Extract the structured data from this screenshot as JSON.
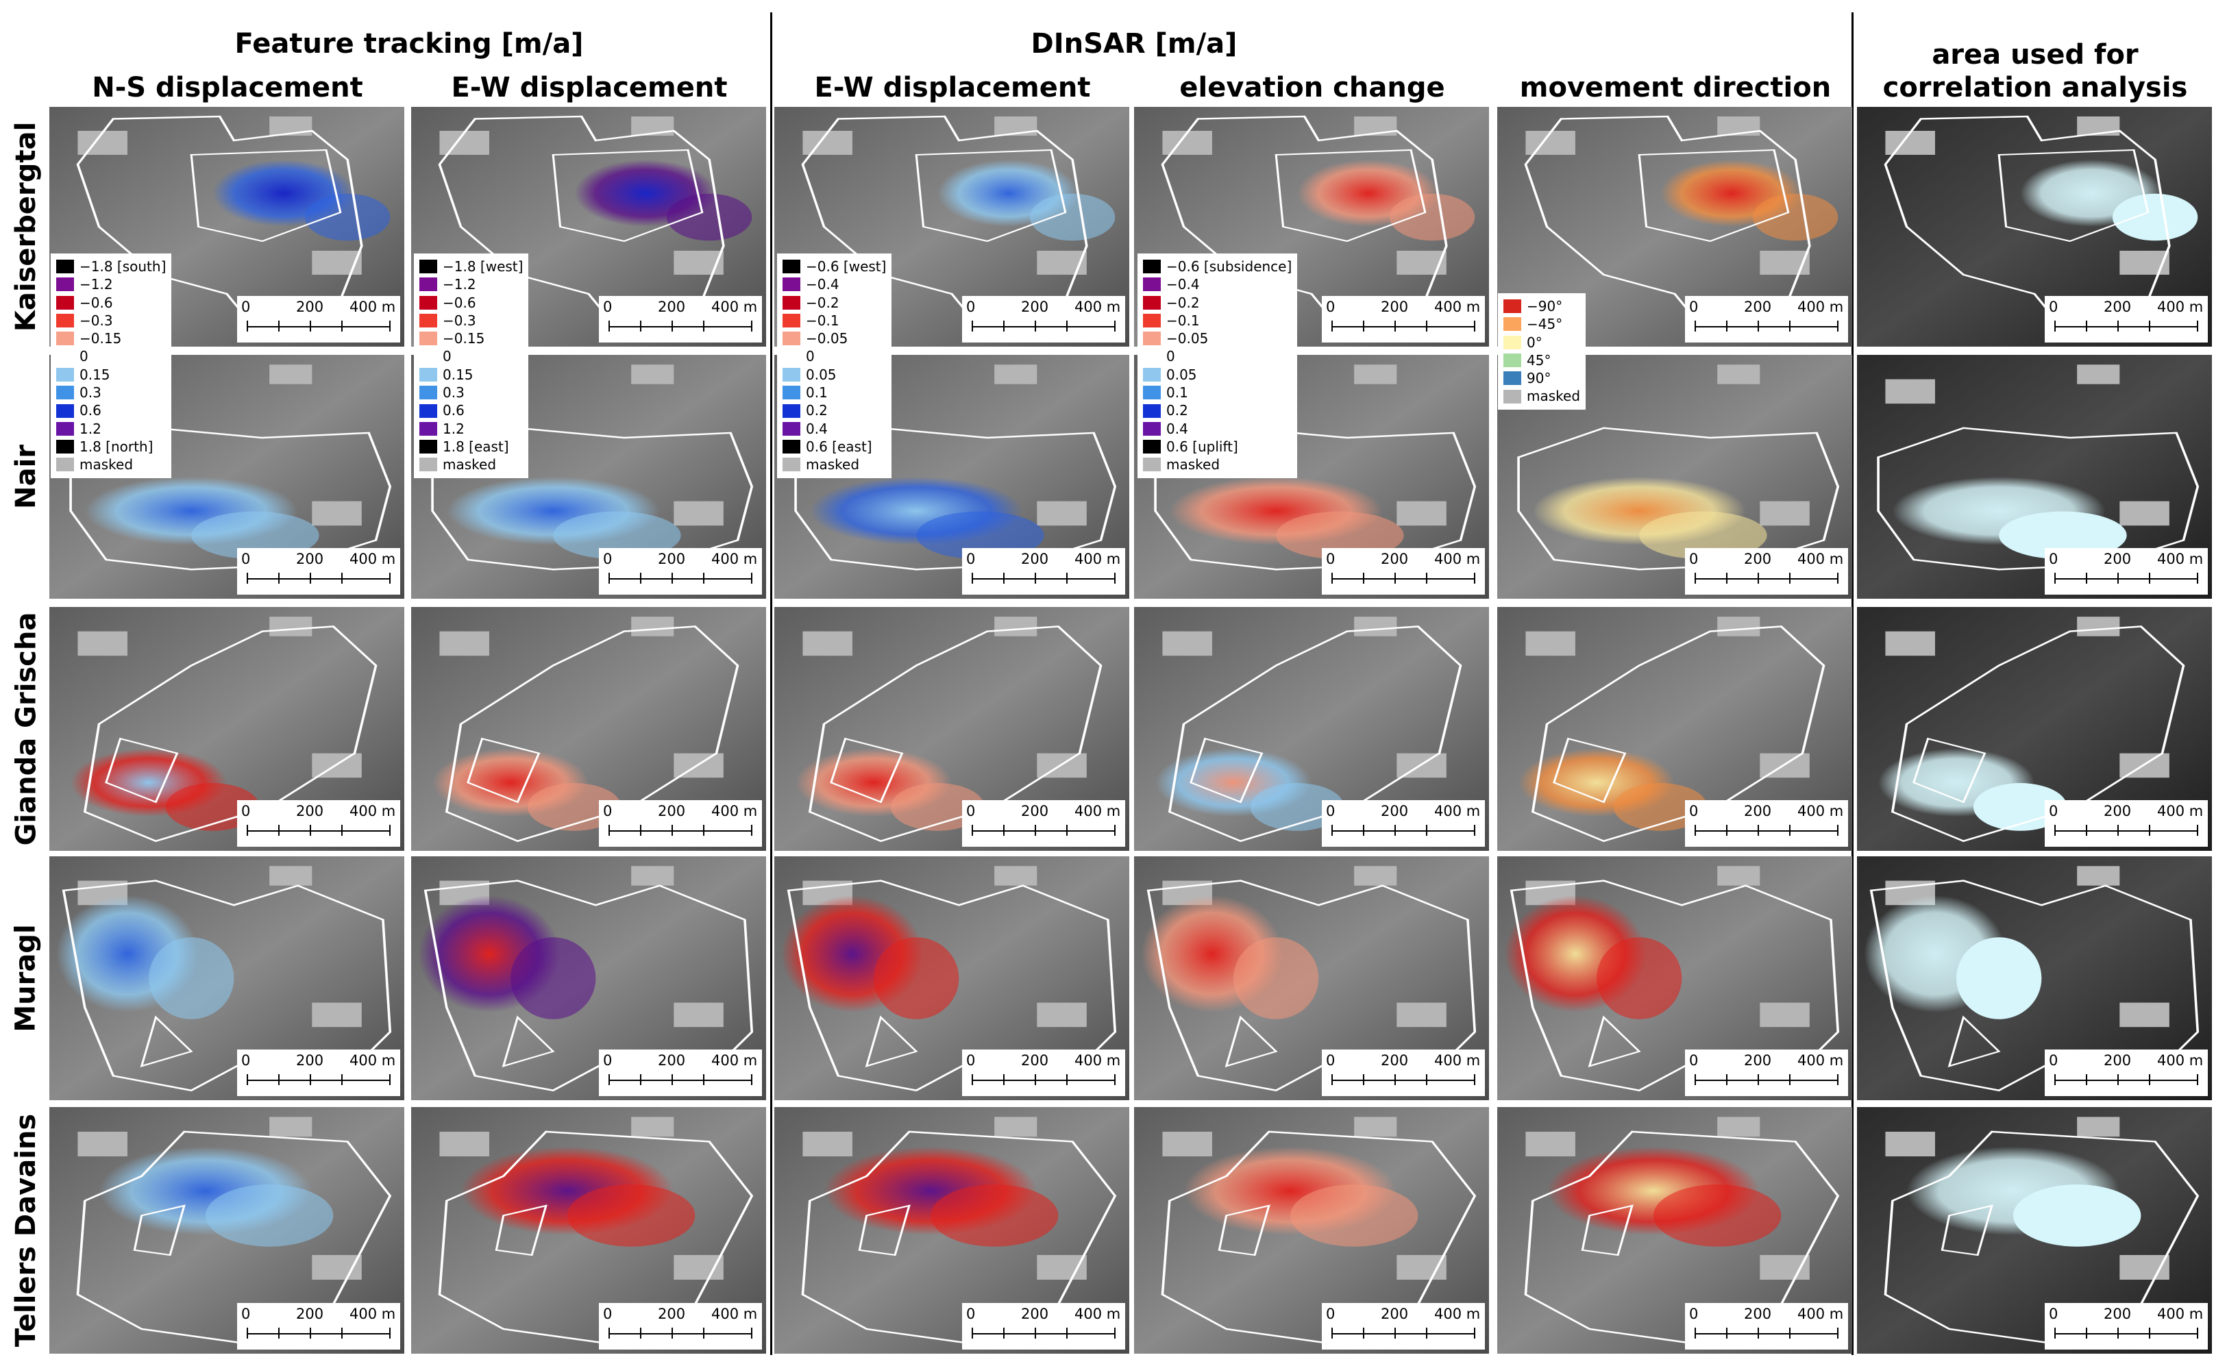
{
  "headers": {
    "feature_tracking": "Feature tracking [m/a]",
    "dinsar": "DInSAR [m/a]",
    "columns": [
      "N-S displacement",
      "E-W displacement",
      "E-W displacement",
      "elevation change",
      "movement direction",
      "area used for"
    ],
    "column6_line2": "correlation analysis"
  },
  "rows": [
    "Kaiserbergtal",
    "Nair",
    "Gianda Grischa",
    "Muragl",
    "Tellers Davains"
  ],
  "scale_bar": {
    "l0": "0",
    "l1": "200",
    "l2": "400 m"
  },
  "legends": [
    {
      "items": [
        {
          "label": "−1.8 [south]",
          "color": "#000000"
        },
        {
          "label": "−1.2",
          "color": "#7b0e93"
        },
        {
          "label": "−0.6",
          "color": "#c4001c"
        },
        {
          "label": "−0.3",
          "color": "#ef3a2d"
        },
        {
          "label": "−0.15",
          "color": "#f7a08a"
        },
        {
          "label": "0",
          "color": ""
        },
        {
          "label": "0.15",
          "color": "#8fc7ee"
        },
        {
          "label": "0.3",
          "color": "#3f92e6"
        },
        {
          "label": "0.6",
          "color": "#1232d6"
        },
        {
          "label": "1.2",
          "color": "#6a14a6"
        },
        {
          "label": "1.8 [north]",
          "color": "#000000"
        },
        {
          "label": "masked",
          "color": "#b5b5b5"
        }
      ]
    },
    {
      "items": [
        {
          "label": "−1.8 [west]",
          "color": "#000000"
        },
        {
          "label": "−1.2",
          "color": "#7b0e93"
        },
        {
          "label": "−0.6",
          "color": "#c4001c"
        },
        {
          "label": "−0.3",
          "color": "#ef3a2d"
        },
        {
          "label": "−0.15",
          "color": "#f7a08a"
        },
        {
          "label": "0",
          "color": ""
        },
        {
          "label": "0.15",
          "color": "#8fc7ee"
        },
        {
          "label": "0.3",
          "color": "#3f92e6"
        },
        {
          "label": "0.6",
          "color": "#1232d6"
        },
        {
          "label": "1.2",
          "color": "#6a14a6"
        },
        {
          "label": "1.8 [east]",
          "color": "#000000"
        },
        {
          "label": "masked",
          "color": "#b5b5b5"
        }
      ]
    },
    {
      "items": [
        {
          "label": "−0.6 [west]",
          "color": "#000000"
        },
        {
          "label": "−0.4",
          "color": "#7b0e93"
        },
        {
          "label": "−0.2",
          "color": "#c4001c"
        },
        {
          "label": "−0.1",
          "color": "#ef3a2d"
        },
        {
          "label": "−0.05",
          "color": "#f7a08a"
        },
        {
          "label": "0",
          "color": ""
        },
        {
          "label": "0.05",
          "color": "#8fc7ee"
        },
        {
          "label": "0.1",
          "color": "#3f92e6"
        },
        {
          "label": "0.2",
          "color": "#1232d6"
        },
        {
          "label": "0.4",
          "color": "#6a14a6"
        },
        {
          "label": "0.6 [east]",
          "color": "#000000"
        },
        {
          "label": "masked",
          "color": "#b5b5b5"
        }
      ]
    },
    {
      "items": [
        {
          "label": "−0.6 [subsidence]",
          "color": "#000000"
        },
        {
          "label": "−0.4",
          "color": "#7b0e93"
        },
        {
          "label": "−0.2",
          "color": "#c4001c"
        },
        {
          "label": "−0.1",
          "color": "#ef3a2d"
        },
        {
          "label": "−0.05",
          "color": "#f7a08a"
        },
        {
          "label": "0",
          "color": ""
        },
        {
          "label": "0.05",
          "color": "#8fc7ee"
        },
        {
          "label": "0.1",
          "color": "#3f92e6"
        },
        {
          "label": "0.2",
          "color": "#1232d6"
        },
        {
          "label": "0.4",
          "color": "#6a14a6"
        },
        {
          "label": "0.6 [uplift]",
          "color": "#000000"
        },
        {
          "label": "masked",
          "color": "#b5b5b5"
        }
      ]
    },
    {
      "items": [
        {
          "label": "−90°",
          "color": "#d7261e"
        },
        {
          "label": "−45°",
          "color": "#fba45c"
        },
        {
          "label": "0°",
          "color": "#fdf5b0"
        },
        {
          "label": "45°",
          "color": "#a6dba0"
        },
        {
          "label": "90°",
          "color": "#3a7fb9"
        },
        {
          "label": "masked",
          "color": "#b5b5b5"
        }
      ]
    }
  ],
  "colors": {
    "red": "#e3201c",
    "blue": "#2e63e0",
    "light_blue": "#8ec8f0",
    "salmon": "#f3957a",
    "dark_blue": "#1420c8",
    "purple": "#5a0f8a",
    "yellow": "#f6e39a",
    "orange": "#f28d3f",
    "cyan": "#d6f6fb",
    "masked": "#b5b5b5"
  }
}
